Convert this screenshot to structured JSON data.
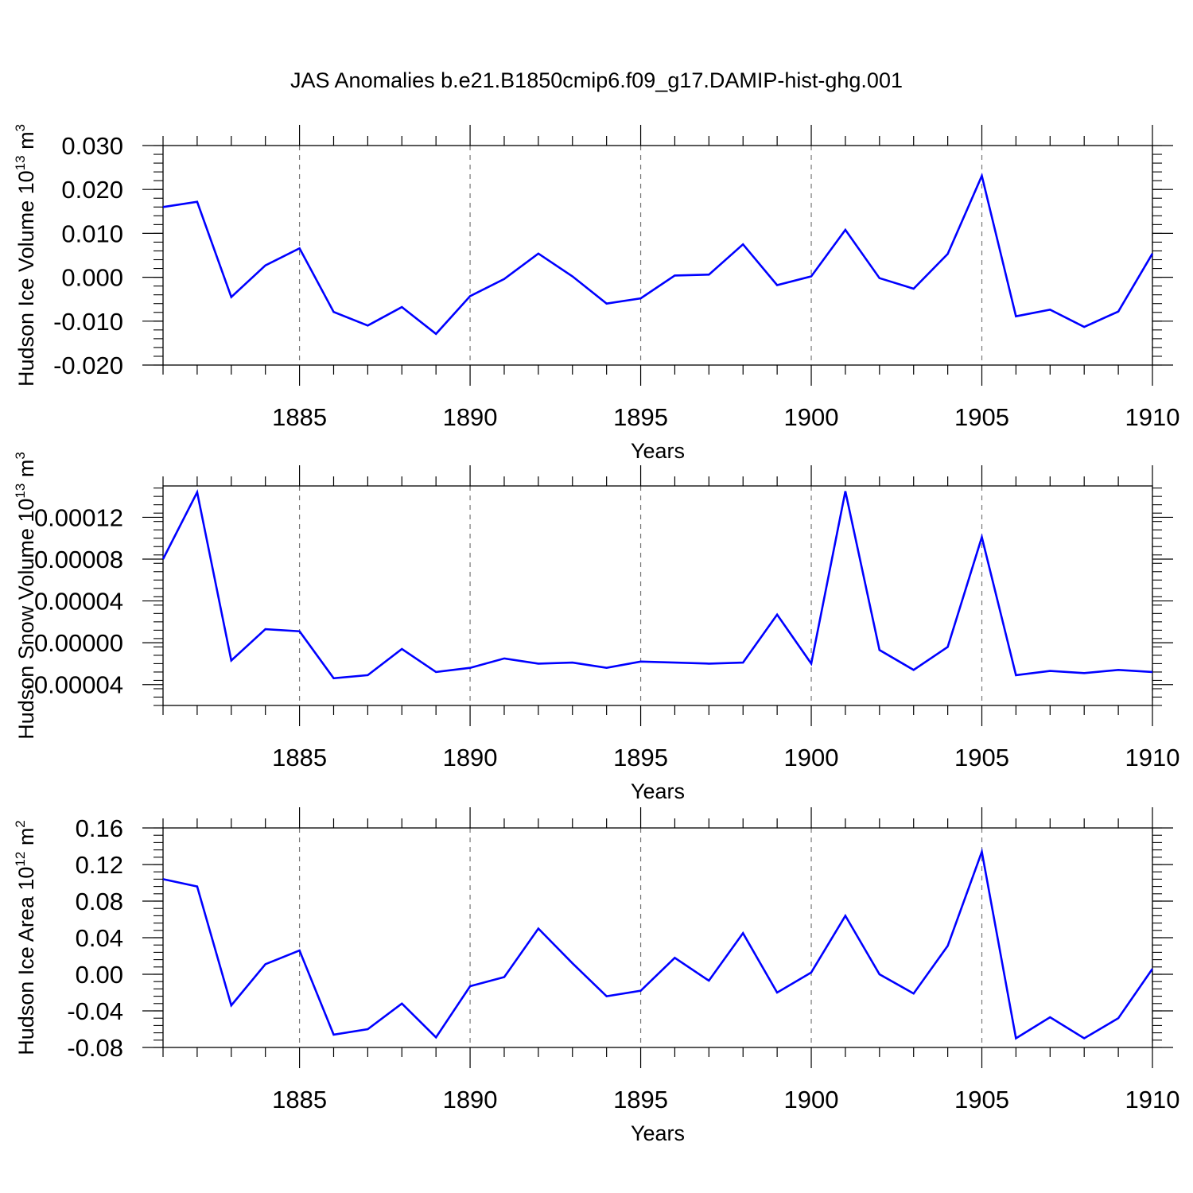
{
  "title": "JAS Anomalies b.e21.B1850cmip6.f09_g17.DAMIP-hist-ghg.001",
  "colors": {
    "series": "#0000ff",
    "axis": "#000000",
    "grid": "#777777",
    "background": "#ffffff"
  },
  "chart_data": [
    {
      "type": "line",
      "ylabel_main": "Hudson Ice Volume 10",
      "ylabel_exp": "13",
      "ylabel_unit": " m",
      "ylabel_unit_exp": "3",
      "xlabel": "Years",
      "xlim": [
        1881,
        1910
      ],
      "ylim": [
        -0.02,
        0.03
      ],
      "yticks": [
        -0.02,
        -0.01,
        0.0,
        0.01,
        0.02,
        0.03
      ],
      "yticklabels": [
        "-0.020",
        "-0.010",
        "0.000",
        "0.010",
        "0.020",
        "0.030"
      ],
      "xticks": [
        1885,
        1890,
        1895,
        1900,
        1905,
        1910
      ],
      "xticklabels": [
        "1885",
        "1890",
        "1895",
        "1900",
        "1905",
        "1910"
      ],
      "x": [
        1881,
        1882,
        1883,
        1884,
        1885,
        1886,
        1887,
        1888,
        1889,
        1890,
        1891,
        1892,
        1893,
        1894,
        1895,
        1896,
        1897,
        1898,
        1899,
        1900,
        1901,
        1902,
        1903,
        1904,
        1905,
        1906,
        1907,
        1908,
        1909,
        1910
      ],
      "values": [
        0.016,
        0.0172,
        -0.0045,
        0.0027,
        0.0066,
        -0.0079,
        -0.011,
        -0.0068,
        -0.0129,
        -0.0043,
        -0.0004,
        0.0054,
        0.0002,
        -0.006,
        -0.0048,
        0.0004,
        0.0006,
        0.0075,
        -0.0018,
        0.0002,
        0.0108,
        -0.0002,
        -0.0026,
        0.0053,
        0.0231,
        -0.0089,
        -0.0074,
        -0.0113,
        -0.0078,
        0.0054
      ]
    },
    {
      "type": "line",
      "ylabel_main": "Hudson Snow Volume 10",
      "ylabel_exp": "13",
      "ylabel_unit": " m",
      "ylabel_unit_exp": "3",
      "xlabel": "Years",
      "xlim": [
        1881,
        1910
      ],
      "ylim": [
        -6e-05,
        0.00015
      ],
      "yticks": [
        -4e-05,
        0.0,
        4e-05,
        8e-05,
        0.00012
      ],
      "yticklabels": [
        "-0.00004",
        "0.00000",
        "0.00004",
        "0.00008",
        "0.00012"
      ],
      "xticks": [
        1885,
        1890,
        1895,
        1900,
        1905,
        1910
      ],
      "xticklabels": [
        "1885",
        "1890",
        "1895",
        "1900",
        "1905",
        "1910"
      ],
      "x": [
        1881,
        1882,
        1883,
        1884,
        1885,
        1886,
        1887,
        1888,
        1889,
        1890,
        1891,
        1892,
        1893,
        1894,
        1895,
        1896,
        1897,
        1898,
        1899,
        1900,
        1901,
        1902,
        1903,
        1904,
        1905,
        1906,
        1907,
        1908,
        1909,
        1910
      ],
      "values": [
        8e-05,
        0.000144,
        -1.7e-05,
        1.3e-05,
        1.1e-05,
        -3.4e-05,
        -3.1e-05,
        -6e-06,
        -2.8e-05,
        -2.4e-05,
        -1.5e-05,
        -2e-05,
        -1.9e-05,
        -2.4e-05,
        -1.8e-05,
        -1.9e-05,
        -2e-05,
        -1.9e-05,
        2.7e-05,
        -2e-05,
        0.000145,
        -7e-06,
        -2.6e-05,
        -4e-06,
        0.000101,
        -3.1e-05,
        -2.7e-05,
        -2.9e-05,
        -2.6e-05,
        -2.8e-05
      ]
    },
    {
      "type": "line",
      "ylabel_main": "Hudson Ice Area 10",
      "ylabel_exp": "12",
      "ylabel_unit": " m",
      "ylabel_unit_exp": "2",
      "xlabel": "Years",
      "xlim": [
        1881,
        1910
      ],
      "ylim": [
        -0.08,
        0.16
      ],
      "yticks": [
        -0.08,
        -0.04,
        0.0,
        0.04,
        0.08,
        0.12,
        0.16
      ],
      "yticklabels": [
        "-0.08",
        "-0.04",
        "0.00",
        "0.04",
        "0.08",
        "0.12",
        "0.16"
      ],
      "xticks": [
        1885,
        1890,
        1895,
        1900,
        1905,
        1910
      ],
      "xticklabels": [
        "1885",
        "1890",
        "1895",
        "1900",
        "1905",
        "1910"
      ],
      "x": [
        1881,
        1882,
        1883,
        1884,
        1885,
        1886,
        1887,
        1888,
        1889,
        1890,
        1891,
        1892,
        1893,
        1894,
        1895,
        1896,
        1897,
        1898,
        1899,
        1900,
        1901,
        1902,
        1903,
        1904,
        1905,
        1906,
        1907,
        1908,
        1909,
        1910
      ],
      "values": [
        0.104,
        0.096,
        -0.034,
        0.011,
        0.026,
        -0.066,
        -0.06,
        -0.032,
        -0.069,
        -0.013,
        -0.003,
        0.05,
        0.012,
        -0.024,
        -0.018,
        0.018,
        -0.007,
        0.045,
        -0.02,
        0.002,
        0.064,
        0.0,
        -0.021,
        0.031,
        0.134,
        -0.07,
        -0.047,
        -0.07,
        -0.048,
        0.006
      ]
    }
  ]
}
